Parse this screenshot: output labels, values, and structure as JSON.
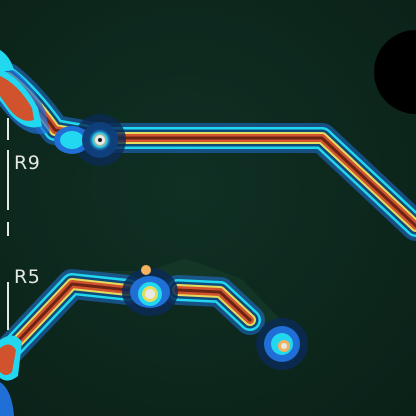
{
  "board": {
    "labels": {
      "r9": "R9",
      "r5": "R5"
    }
  },
  "colors": {
    "board": "#0c2419",
    "solder_mask_ridge": "#163a2a",
    "trace_outer_glow": "#1f6fd6",
    "trace_cyan": "#22d7f0",
    "trace_yellow": "#e4dc5e",
    "trace_core": "#d1532d",
    "trace_core_dark": "#6a2314",
    "pad_white": "#e8e8e8",
    "mounting_hole": "#000000",
    "silkscreen": "#e4e9e2"
  },
  "icons": [
    "mounting-hole",
    "via",
    "solder-pad"
  ]
}
